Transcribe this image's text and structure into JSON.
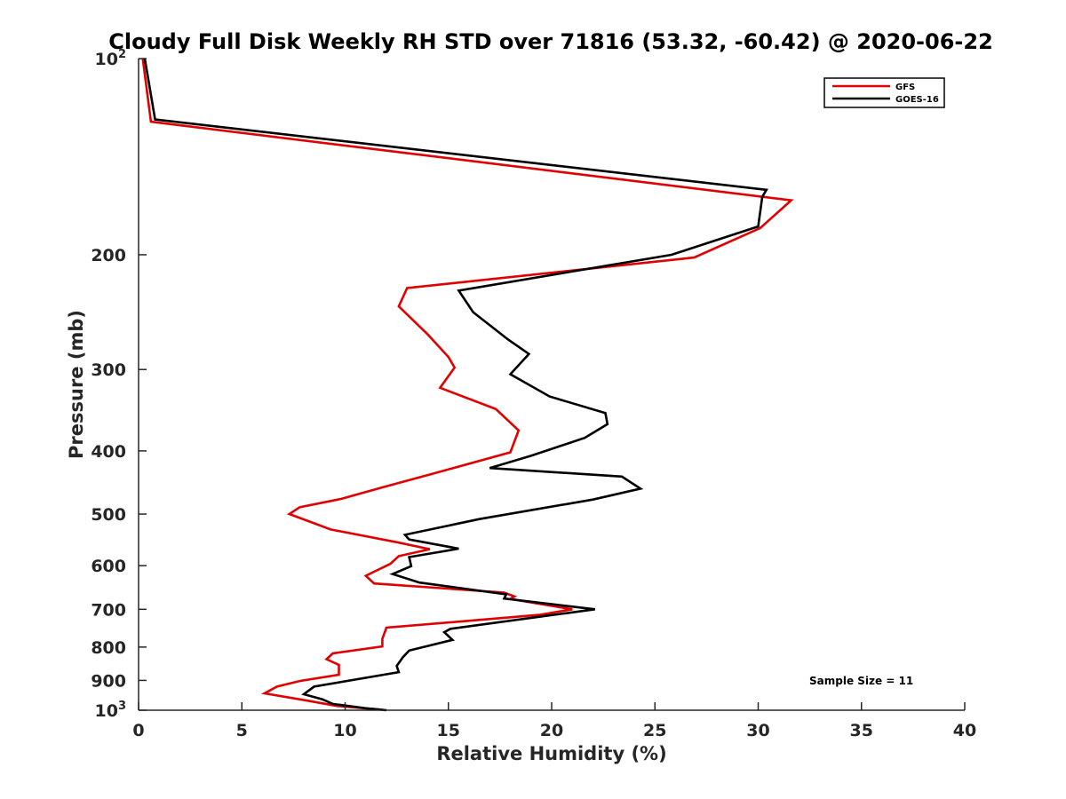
{
  "chart_data": {
    "type": "line",
    "title": "Cloudy Full Disk Weekly RH STD over 71816 (53.32, -60.42) @ 2020-06-22",
    "xlabel": "Relative Humidity (%)",
    "ylabel": "Pressure (mb)",
    "xlim": [
      0,
      40
    ],
    "ylim": [
      100,
      1000
    ],
    "y_scale": "log",
    "y_reversed": true,
    "grid": false,
    "legend_position": "top-right",
    "x_ticks": [
      "0",
      "5",
      "10",
      "15",
      "20",
      "25",
      "30",
      "35",
      "40"
    ],
    "y_ticks": [
      {
        "value": 100,
        "base": "10",
        "exp": "2"
      },
      {
        "value": 200,
        "label": "200"
      },
      {
        "value": 300,
        "label": "300"
      },
      {
        "value": 400,
        "label": "400"
      },
      {
        "value": 500,
        "label": "500"
      },
      {
        "value": 600,
        "label": "600"
      },
      {
        "value": 700,
        "label": "700"
      },
      {
        "value": 800,
        "label": "800"
      },
      {
        "value": 900,
        "label": "900"
      },
      {
        "value": 1000,
        "base": "10",
        "exp": "3"
      }
    ],
    "annotation": "Sample Size = 11",
    "series": [
      {
        "name": "GFS",
        "color": "#e00000",
        "points": [
          [
            0.2,
            100
          ],
          [
            0.6,
            125
          ],
          [
            31.6,
            165
          ],
          [
            30.1,
            182
          ],
          [
            26.9,
            202
          ],
          [
            13.0,
            225
          ],
          [
            12.6,
            240
          ],
          [
            14.0,
            265
          ],
          [
            15.0,
            287
          ],
          [
            15.3,
            298
          ],
          [
            14.6,
            320
          ],
          [
            17.3,
            345
          ],
          [
            18.4,
            372
          ],
          [
            18.0,
            402
          ],
          [
            14.2,
            434
          ],
          [
            11.8,
            455
          ],
          [
            9.8,
            474
          ],
          [
            7.8,
            488
          ],
          [
            7.3,
            500
          ],
          [
            9.3,
            528
          ],
          [
            12.6,
            553
          ],
          [
            14.1,
            566
          ],
          [
            12.6,
            580
          ],
          [
            12.2,
            596
          ],
          [
            11.4,
            613
          ],
          [
            11.0,
            622
          ],
          [
            11.4,
            639
          ],
          [
            17.7,
            660
          ],
          [
            18.2,
            669
          ],
          [
            18.0,
            675
          ],
          [
            21.0,
            700
          ],
          [
            19.4,
            714
          ],
          [
            12.0,
            747
          ],
          [
            11.8,
            777
          ],
          [
            11.8,
            798
          ],
          [
            9.4,
            818
          ],
          [
            9.1,
            835
          ],
          [
            9.7,
            852
          ],
          [
            9.7,
            882
          ],
          [
            7.8,
            902
          ],
          [
            6.7,
            920
          ],
          [
            6.1,
            942
          ],
          [
            8.2,
            967
          ],
          [
            9.6,
            985
          ],
          [
            11.8,
            998
          ]
        ]
      },
      {
        "name": "GOES-16",
        "color": "#000000",
        "points": [
          [
            0.3,
            100
          ],
          [
            0.8,
            124
          ],
          [
            30.4,
            159
          ],
          [
            30.2,
            163
          ],
          [
            30.0,
            181
          ],
          [
            25.8,
            200
          ],
          [
            15.5,
            227
          ],
          [
            16.2,
            245
          ],
          [
            17.9,
            270
          ],
          [
            18.9,
            284
          ],
          [
            18.0,
            305
          ],
          [
            19.9,
            330
          ],
          [
            22.6,
            350
          ],
          [
            22.7,
            364
          ],
          [
            21.6,
            382
          ],
          [
            19.0,
            407
          ],
          [
            17.0,
            425
          ],
          [
            23.4,
            438
          ],
          [
            24.3,
            457
          ],
          [
            22.0,
            475
          ],
          [
            16.5,
            509
          ],
          [
            12.9,
            538
          ],
          [
            13.1,
            547
          ],
          [
            15.5,
            565
          ],
          [
            13.1,
            582
          ],
          [
            13.2,
            601
          ],
          [
            12.3,
            618
          ],
          [
            13.6,
            637
          ],
          [
            17.8,
            664
          ],
          [
            17.7,
            674
          ],
          [
            22.1,
            700
          ],
          [
            15.1,
            750
          ],
          [
            14.8,
            759
          ],
          [
            15.2,
            780
          ],
          [
            13.1,
            810
          ],
          [
            12.8,
            829
          ],
          [
            12.5,
            855
          ],
          [
            12.6,
            874
          ],
          [
            8.5,
            920
          ],
          [
            8.0,
            945
          ],
          [
            8.9,
            962
          ],
          [
            9.4,
            978
          ],
          [
            11.0,
            993
          ],
          [
            12.0,
            1000
          ]
        ]
      }
    ]
  }
}
